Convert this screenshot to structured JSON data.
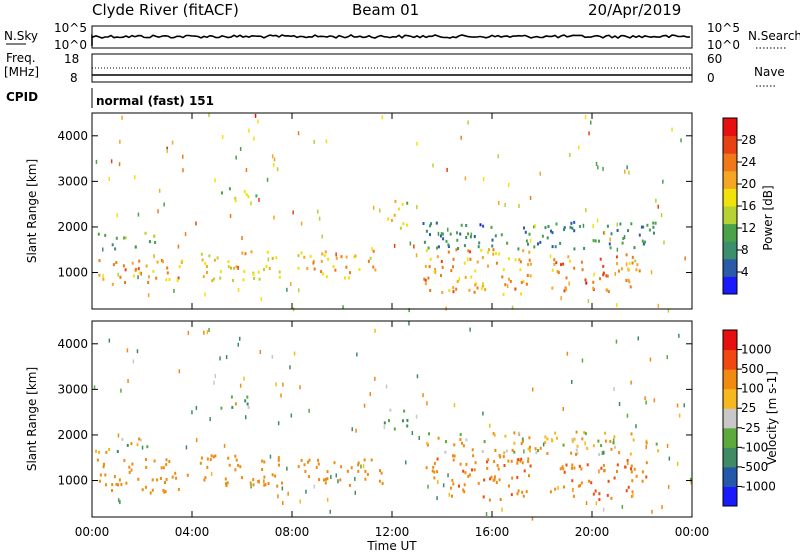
{
  "header": {
    "station": "Clyde River (fitACF)",
    "beam": "Beam 01",
    "date": "20/Apr/2019"
  },
  "strip_panels": {
    "nsky": {
      "left_label": "N.Sky",
      "left_ticks": [
        "10^5",
        "10^0"
      ],
      "right_ticks": [
        "10^5",
        "10^0"
      ],
      "right_label": "N.Search"
    },
    "freq": {
      "left_label_1": "Freq.",
      "left_label_2": "[MHz]",
      "left_ticks": [
        "18",
        "8"
      ],
      "right_ticks": [
        "60",
        "0"
      ],
      "right_label": "Nave"
    },
    "cpid": {
      "left_label": "CPID",
      "program": "normal (fast) 151"
    }
  },
  "colors": {
    "power_scale": [
      "#1a1aff",
      "#2a5aa8",
      "#3c8f6c",
      "#4aa34a",
      "#b6d234",
      "#f1e20c",
      "#f5a623",
      "#f07818",
      "#e84214",
      "#e61010"
    ],
    "velocity_scale": [
      "#e61010",
      "#f04810",
      "#f08a10",
      "#f6b81e",
      "#c8c8c8",
      "#5caa3c",
      "#3f8c64",
      "#2458aa",
      "#1a1aff"
    ]
  },
  "chart_data": [
    {
      "type": "heatmap",
      "name": "power",
      "title": "",
      "xlabel": "Time UT",
      "ylabel": "Slant Range [km]",
      "x_ticks": [
        "00:00",
        "04:00",
        "08:00",
        "12:00",
        "16:00",
        "20:00",
        "00:00"
      ],
      "y_ticks": [
        1000,
        2000,
        3000,
        4000
      ],
      "xlim_hours": [
        0,
        24
      ],
      "ylim_km": [
        200,
        4500
      ],
      "colorbar_label": "Power [dB]",
      "colorbar_ticks": [
        4,
        8,
        12,
        16,
        20,
        24,
        28
      ],
      "colorbar_range": [
        0,
        32
      ],
      "regions": [
        {
          "t0": 0.1,
          "t1": 3.8,
          "r0": 750,
          "r1": 1300,
          "level": 22
        },
        {
          "t0": 0.1,
          "t1": 2.5,
          "r0": 1550,
          "r1": 1900,
          "level": 12
        },
        {
          "t0": 4.2,
          "t1": 7.6,
          "r0": 850,
          "r1": 1500,
          "level": 18
        },
        {
          "t0": 5.0,
          "t1": 6.6,
          "r0": 2600,
          "r1": 2900,
          "level": 14
        },
        {
          "t0": 8.2,
          "t1": 11.6,
          "r0": 900,
          "r1": 1500,
          "level": 20
        },
        {
          "t0": 11.6,
          "t1": 12.6,
          "r0": 2000,
          "r1": 2600,
          "level": 16
        },
        {
          "t0": 13.2,
          "t1": 17.6,
          "r0": 550,
          "r1": 1600,
          "level": 22
        },
        {
          "t0": 18.3,
          "t1": 21.7,
          "r0": 600,
          "r1": 1400,
          "level": 24
        },
        {
          "t0": 13.2,
          "t1": 22.8,
          "r0": 1550,
          "r1": 2150,
          "level": 8
        },
        {
          "t0": 21.3,
          "t1": 22.2,
          "r0": 1000,
          "r1": 1500,
          "level": 20
        }
      ]
    },
    {
      "type": "heatmap",
      "name": "velocity",
      "title": "",
      "xlabel": "Time UT",
      "ylabel": "Slant Range [km]",
      "x_ticks": [
        "00:00",
        "04:00",
        "08:00",
        "12:00",
        "16:00",
        "20:00",
        "00:00"
      ],
      "y_ticks": [
        1000,
        2000,
        3000,
        4000
      ],
      "xlim_hours": [
        0,
        24
      ],
      "ylim_km": [
        200,
        4500
      ],
      "colorbar_label": "Velocity [m s-1]",
      "colorbar_ticks": [
        -1000,
        -500,
        -100,
        -25,
        25,
        100,
        500,
        1000
      ],
      "regions": [
        {
          "t0": 0.1,
          "t1": 3.8,
          "r0": 750,
          "r1": 1500,
          "velocity": -300
        },
        {
          "t0": 0.1,
          "t1": 2.5,
          "r0": 1650,
          "r1": 1950,
          "velocity": 0
        },
        {
          "t0": 4.2,
          "t1": 7.6,
          "r0": 900,
          "r1": 1600,
          "velocity": -300
        },
        {
          "t0": 5.0,
          "t1": 6.6,
          "r0": 2600,
          "r1": 2900,
          "velocity": 0
        },
        {
          "t0": 8.2,
          "t1": 11.6,
          "r0": 900,
          "r1": 1500,
          "velocity": -300
        },
        {
          "t0": 11.6,
          "t1": 12.6,
          "r0": 2100,
          "r1": 2600,
          "velocity": 80
        },
        {
          "t0": 13.2,
          "t1": 17.6,
          "r0": 600,
          "r1": 1600,
          "velocity": -400
        },
        {
          "t0": 18.3,
          "t1": 21.7,
          "r0": 600,
          "r1": 1400,
          "velocity": -500
        },
        {
          "t0": 13.2,
          "t1": 22.8,
          "r0": 1600,
          "r1": 2100,
          "velocity": -60
        },
        {
          "t0": 21.3,
          "t1": 22.2,
          "r0": 1000,
          "r1": 1500,
          "velocity": -500
        }
      ]
    }
  ]
}
